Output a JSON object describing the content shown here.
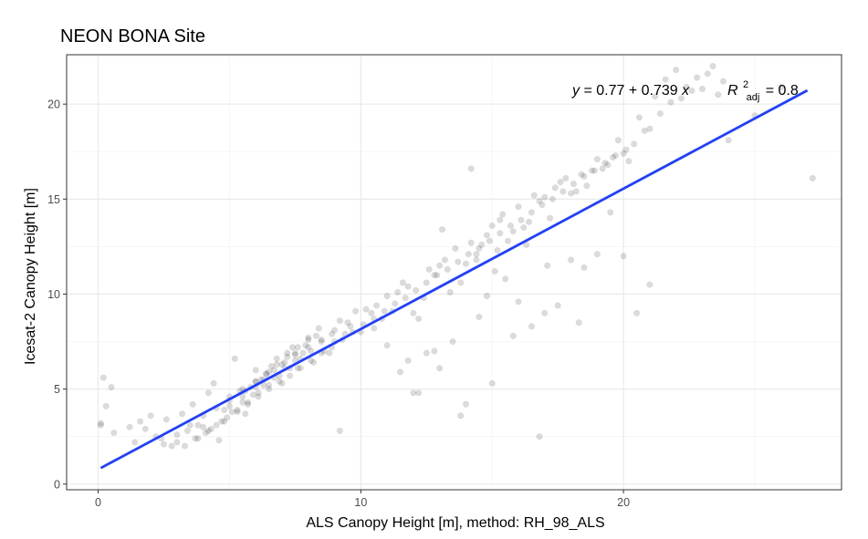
{
  "chart_data": {
    "type": "scatter",
    "title": "NEON BONA Site",
    "xlabel": "ALS Canopy Height [m], method: RH_98_ALS",
    "ylabel": "Icesat-2 Canopy Height [m]",
    "xlim": [
      -1.2,
      28.3
    ],
    "ylim": [
      -0.3,
      22.6
    ],
    "x_ticks": [
      0,
      10,
      20
    ],
    "y_ticks": [
      0,
      5,
      10,
      15,
      20
    ],
    "x_tick_labels": [
      "0",
      "10",
      "20"
    ],
    "y_tick_labels": [
      "0",
      "5",
      "10",
      "15",
      "20"
    ],
    "grid": true,
    "legend": "none",
    "colors": {
      "points": "#000000",
      "fit_line": "#1f3fff",
      "grid_major": "#ebebeb",
      "grid_minor": "#f4f4f4",
      "panel_border": "#333333"
    },
    "point_opacity": 0.14,
    "fit": {
      "intercept": 0.77,
      "slope": 0.739,
      "x_range": [
        0.1,
        27.0
      ],
      "equation_parts": {
        "y_var": "y",
        "equals": " = 0.77 + 0.739 ",
        "x_var": "x",
        "r_symbol": "R",
        "r_sup": "2",
        "r_sub": "adj",
        "r_value": " = 0.8"
      }
    },
    "series": [
      {
        "x": [
          0.1,
          0.2,
          0.3,
          0.5,
          0.6,
          0.1,
          1.2,
          1.4,
          1.6,
          1.8,
          2.0,
          2.2,
          2.4,
          2.6,
          2.8,
          3.0,
          3.2,
          3.4,
          3.6,
          3.8,
          4.0,
          4.2,
          4.4,
          4.6,
          4.8,
          5.0,
          5.2,
          5.4,
          5.6,
          5.8,
          6.0,
          6.2,
          6.4,
          6.6,
          6.8,
          7.0,
          7.2,
          7.4,
          7.6,
          7.8,
          8.0,
          8.2,
          8.4,
          8.6,
          8.8,
          9.0,
          9.2,
          9.4,
          9.6,
          9.8,
          10.0,
          10.2,
          10.4,
          10.6,
          10.8,
          11.0,
          11.2,
          11.4,
          11.6,
          11.8,
          12.0,
          12.2,
          12.4,
          12.6,
          12.8,
          13.0,
          13.2,
          13.4,
          13.6,
          13.8,
          14.0,
          14.2,
          14.4,
          14.6,
          14.8,
          15.0,
          15.2,
          15.4,
          15.6,
          15.8,
          16.0,
          16.2,
          16.4,
          16.6,
          16.8,
          17.0,
          17.2,
          17.4,
          17.6,
          17.8,
          18.0,
          18.2,
          18.4,
          18.6,
          18.8,
          19.0,
          19.2,
          19.4,
          19.6,
          19.8,
          20.0,
          20.2,
          20.4,
          20.6,
          20.8,
          21.0,
          21.2,
          21.4,
          21.6,
          21.8,
          22.0,
          22.2,
          22.4,
          22.6,
          22.8,
          23.0,
          23.2,
          23.4,
          23.6,
          23.8,
          24.0,
          25.0,
          26.0,
          27.2,
          2.5,
          3.0,
          3.5,
          4.0,
          4.5,
          5.0,
          5.5,
          6.0,
          6.5,
          7.0,
          7.5,
          8.0,
          8.5,
          9.0,
          9.5,
          4.2,
          4.8,
          5.3,
          5.7,
          6.1,
          6.5,
          6.9,
          7.3,
          7.7,
          8.1,
          8.5,
          8.9,
          5.0,
          5.5,
          6.0,
          6.3,
          6.7,
          7.1,
          7.5,
          7.9,
          8.3,
          3.8,
          4.3,
          4.7,
          5.1,
          5.5,
          5.9,
          6.3,
          6.7,
          7.1,
          7.5,
          5.6,
          6.0,
          6.4,
          6.8,
          7.2,
          7.6,
          8.0,
          3.3,
          3.7,
          4.1,
          4.5,
          4.9,
          5.3,
          5.7,
          6.1,
          6.5,
          6.9,
          7.3,
          7.7,
          8.1,
          8.5,
          8.9,
          9.3,
          9.7,
          10.1,
          10.5,
          10.9,
          11.3,
          11.7,
          12.1,
          12.5,
          12.9,
          13.3,
          13.7,
          14.1,
          14.5,
          14.9,
          15.3,
          15.7,
          16.1,
          16.5,
          16.9,
          17.3,
          17.7,
          18.1,
          18.5,
          18.9,
          19.3,
          19.7,
          20.1,
          12.0,
          13.0,
          14.0,
          15.0,
          16.0,
          17.0,
          18.0,
          19.0,
          20.0,
          11.0,
          12.5,
          13.5,
          14.5,
          15.5,
          16.5,
          17.5,
          18.5,
          19.5,
          9.2,
          11.5,
          12.8,
          14.2,
          15.1,
          16.8,
          18.3,
          20.5,
          21.0,
          13.8,
          12.2,
          11.8,
          10.5,
          13.1,
          14.4,
          15.8,
          17.1,
          16.3,
          15.3,
          14.8
        ],
        "y": [
          3.1,
          5.6,
          4.1,
          5.1,
          2.7,
          3.2,
          3.0,
          2.2,
          3.3,
          2.9,
          3.6,
          2.5,
          2.4,
          3.4,
          2.0,
          2.2,
          3.7,
          2.8,
          4.2,
          3.1,
          3.0,
          4.8,
          5.3,
          2.3,
          3.9,
          4.4,
          6.6,
          4.9,
          3.7,
          5.1,
          6.0,
          5.5,
          5.8,
          6.2,
          6.6,
          5.3,
          6.9,
          7.2,
          6.1,
          6.9,
          7.7,
          6.4,
          8.2,
          7.0,
          6.9,
          7.5,
          8.6,
          7.9,
          8.3,
          9.1,
          8.0,
          9.2,
          9.0,
          9.4,
          8.7,
          9.9,
          9.1,
          10.1,
          10.6,
          10.4,
          9.0,
          8.7,
          9.8,
          11.3,
          11.0,
          11.5,
          11.8,
          10.1,
          12.4,
          10.6,
          11.6,
          12.7,
          11.8,
          12.6,
          13.1,
          13.6,
          12.3,
          14.2,
          12.8,
          13.3,
          14.6,
          13.5,
          13.8,
          15.2,
          14.9,
          15.1,
          14.0,
          15.6,
          15.9,
          16.1,
          15.3,
          15.4,
          16.3,
          15.7,
          16.5,
          17.1,
          16.6,
          16.8,
          17.2,
          18.1,
          17.4,
          17.0,
          17.9,
          19.3,
          18.6,
          18.7,
          20.4,
          19.5,
          21.3,
          20.1,
          21.8,
          20.3,
          20.9,
          20.7,
          21.4,
          20.8,
          21.6,
          22.0,
          20.5,
          21.2,
          18.1,
          19.4,
          20.9,
          16.1,
          2.1,
          2.6,
          3.1,
          3.6,
          4.0,
          4.6,
          5.0,
          5.4,
          5.9,
          6.3,
          6.8,
          7.2,
          7.6,
          8.1,
          8.5,
          2.8,
          3.3,
          3.8,
          4.3,
          4.8,
          5.2,
          5.7,
          6.1,
          6.6,
          7.0,
          7.5,
          7.9,
          4.1,
          4.6,
          5.1,
          5.5,
          6.0,
          6.4,
          6.9,
          7.3,
          7.8,
          2.4,
          2.9,
          3.3,
          3.8,
          4.3,
          4.7,
          5.2,
          5.6,
          6.1,
          6.5,
          4.9,
          5.4,
          5.8,
          6.3,
          6.7,
          7.2,
          7.6,
          2.0,
          2.4,
          2.7,
          3.1,
          3.5,
          3.9,
          4.2,
          4.6,
          5.0,
          5.4,
          5.7,
          6.1,
          6.5,
          6.9,
          7.2,
          7.6,
          8.0,
          8.4,
          8.7,
          9.1,
          9.5,
          9.8,
          10.2,
          10.6,
          11.0,
          11.3,
          11.7,
          12.1,
          12.4,
          12.8,
          13.2,
          13.6,
          13.9,
          14.3,
          14.7,
          15.0,
          15.4,
          15.8,
          16.2,
          16.5,
          16.9,
          17.3,
          17.6,
          4.8,
          6.1,
          4.2,
          5.3,
          9.6,
          9.0,
          11.8,
          12.1,
          12.0,
          7.3,
          6.9,
          7.5,
          8.8,
          10.8,
          8.3,
          9.4,
          11.4,
          14.3,
          2.8,
          5.9,
          7.0,
          16.6,
          11.2,
          2.5,
          8.5,
          9.0,
          10.5,
          3.6,
          4.8,
          6.5,
          8.2,
          13.4,
          12.1,
          7.8,
          11.5,
          12.6,
          13.9,
          9.9
        ]
      }
    ]
  }
}
